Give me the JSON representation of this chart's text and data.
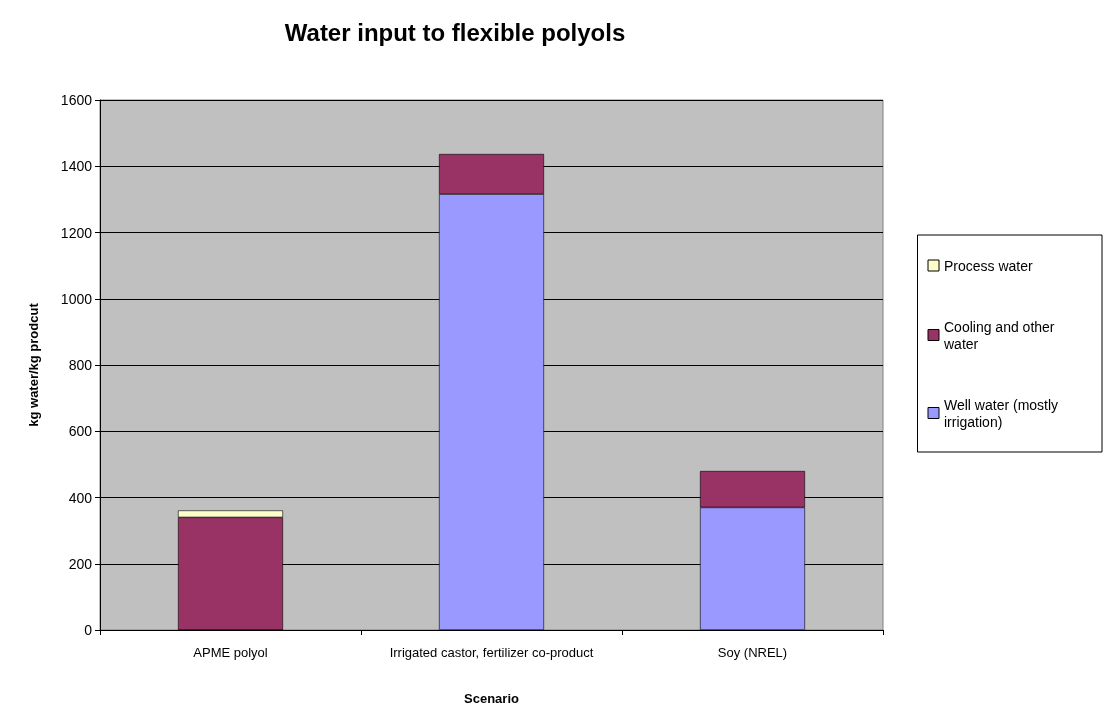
{
  "chart_data": {
    "type": "bar",
    "title": "Water input to flexible polyols",
    "xlabel": "Scenario",
    "ylabel": "kg water/kg prodcut",
    "categories": [
      "APME polyol",
      "Irrigated castor, fertilizer co-product",
      "Soy (NREL)"
    ],
    "stacked": true,
    "series": [
      {
        "name": "Well water (mostly irrigation)",
        "color": "#9999ff",
        "values": [
          0,
          1316,
          370
        ]
      },
      {
        "name": "Cooling and other water",
        "color": "#993366",
        "values": [
          340,
          121,
          110
        ]
      },
      {
        "name": "Process water",
        "color": "#ffffcc",
        "values": [
          21,
          null,
          null
        ]
      }
    ],
    "ylim": [
      0,
      1600
    ],
    "yticks": [
      0,
      200,
      400,
      600,
      800,
      1000,
      1200,
      1400,
      1600
    ],
    "grid": "y",
    "legend": "right"
  }
}
